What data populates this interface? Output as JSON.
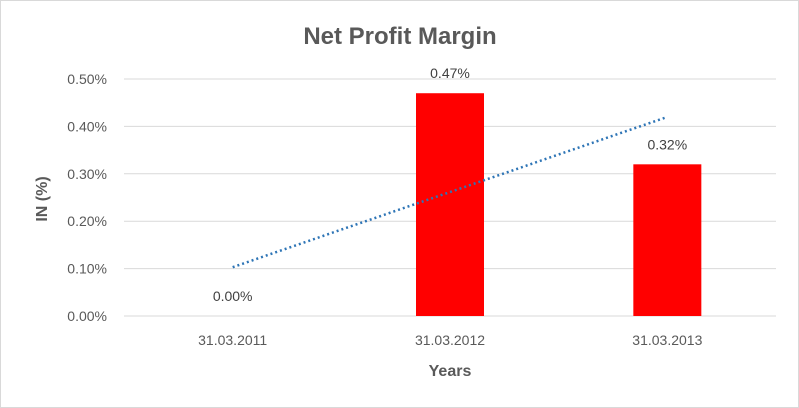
{
  "chart_data": {
    "type": "bar",
    "title": "Net Profit Margin",
    "xlabel": "Years",
    "ylabel": "IN (%)",
    "categories": [
      "31.03.2011",
      "31.03.2012",
      "31.03.2013"
    ],
    "values": [
      0.0,
      0.47,
      0.32
    ],
    "data_labels": [
      "0.00%",
      "0.47%",
      "0.32%"
    ],
    "ylim": [
      0,
      0.5
    ],
    "yticks": [
      0,
      0.1,
      0.2,
      0.3,
      0.4,
      0.5
    ],
    "ytick_labels": [
      "0.00%",
      "0.10%",
      "0.20%",
      "0.30%",
      "0.40%",
      "0.50%"
    ],
    "grid": true,
    "bar_color": "#ff0000",
    "trendline": {
      "type": "linear",
      "style": "dotted",
      "color": "#2e75b6",
      "start": 0.103,
      "end": 0.42
    }
  }
}
